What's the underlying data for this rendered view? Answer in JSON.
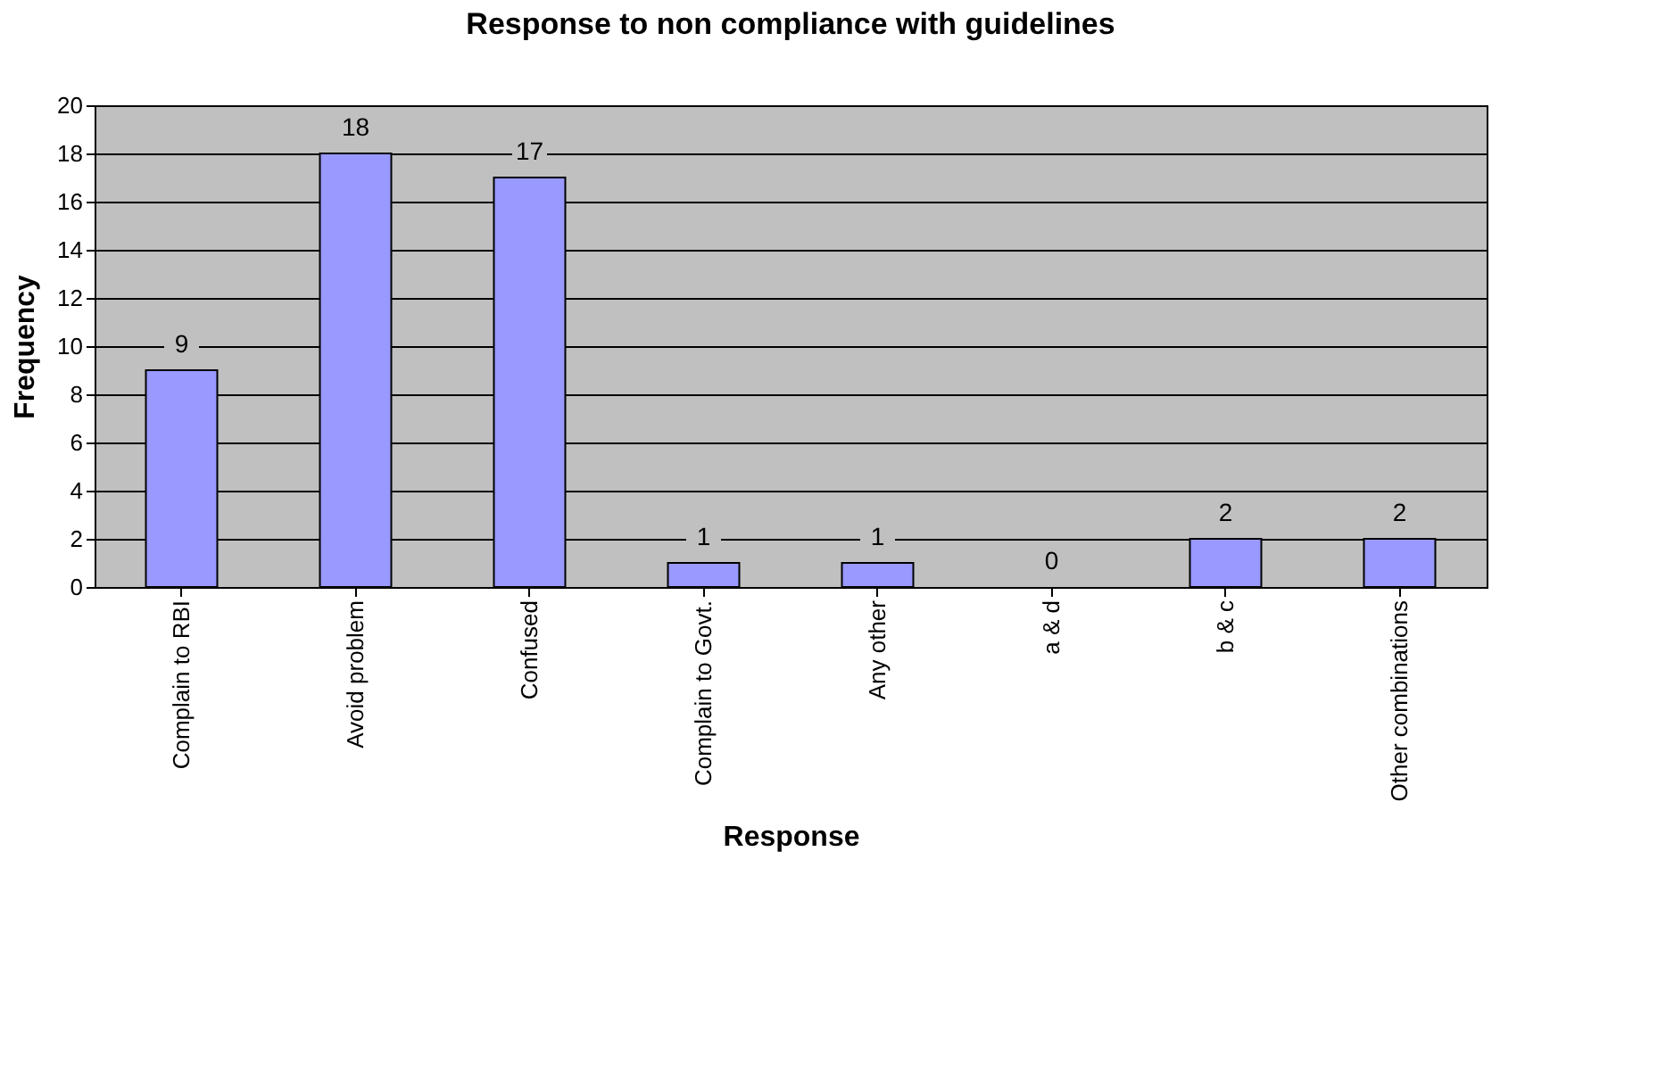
{
  "chart_data": {
    "type": "bar",
    "title": "Response to non compliance with guidelines",
    "xlabel": "Response",
    "ylabel": "Frequency",
    "categories": [
      "Complain to RBI",
      "Avoid problem",
      "Confused",
      "Complain to Govt.",
      "Any other",
      "a & d",
      "b & c",
      "Other combinations"
    ],
    "values": [
      9,
      18,
      17,
      1,
      1,
      0,
      2,
      2
    ],
    "color": "#9999ff",
    "ylim": [
      0,
      20
    ],
    "yticks": [
      0,
      2,
      4,
      6,
      8,
      10,
      12,
      14,
      16,
      18,
      20
    ],
    "grid": "y",
    "data_labels": true
  }
}
